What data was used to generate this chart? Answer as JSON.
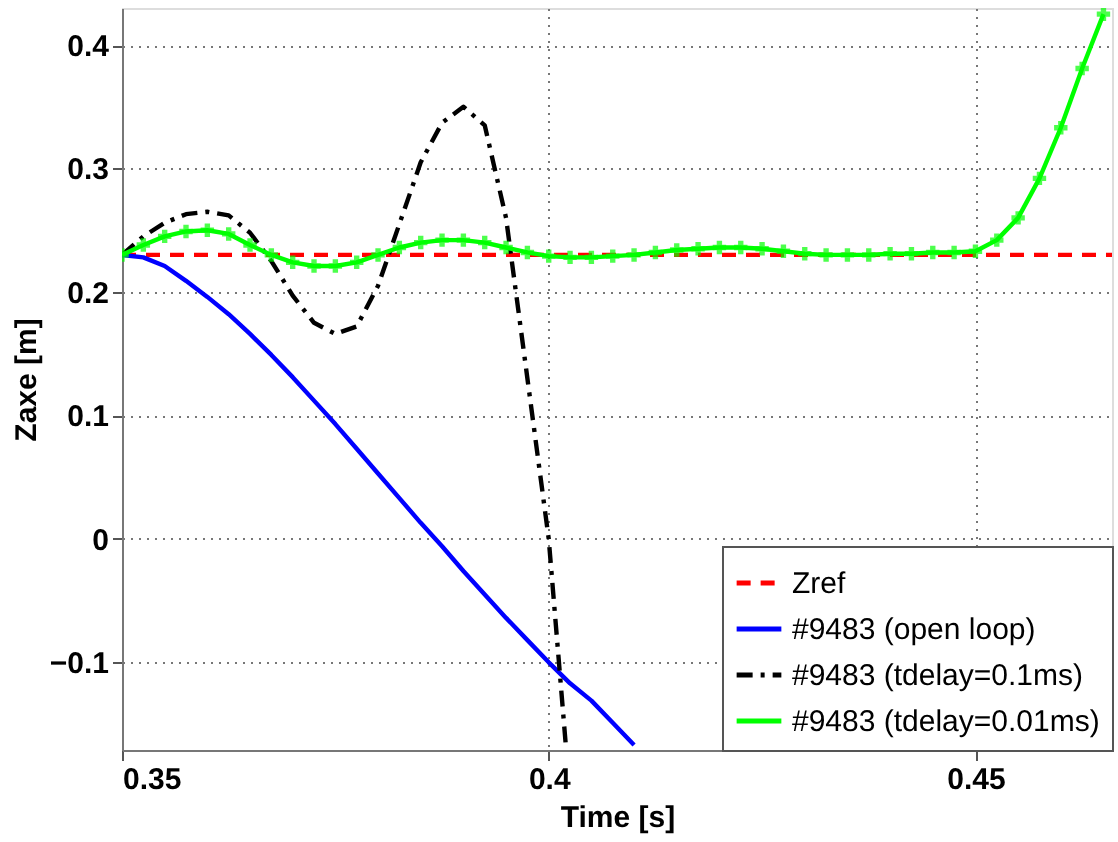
{
  "chart_data": {
    "type": "line",
    "xlabel": "Time [s]",
    "ylabel": "Zaxe [m]",
    "xlim": [
      0.35,
      0.466
    ],
    "xticks": [
      0.35,
      0.4,
      0.45
    ],
    "ylim": [
      -0.171,
      0.43
    ],
    "yticks": [
      -0.1,
      0,
      0.1,
      0.2,
      0.3,
      0.4
    ],
    "grid": true,
    "legend": "bottom right",
    "series": [
      {
        "name": "Zref",
        "color": "#ff0000",
        "line_style": "dashed",
        "marker": "none",
        "x": [
          0.35,
          0.466
        ],
        "values": [
          0.23,
          0.23
        ]
      },
      {
        "name": "#9483 (open loop)",
        "color": "#0000ff",
        "line_style": "solid",
        "marker": "none",
        "x": [
          0.35,
          0.3525,
          0.355,
          0.3575,
          0.36,
          0.3625,
          0.365,
          0.3675,
          0.37,
          0.3725,
          0.375,
          0.3775,
          0.38,
          0.3825,
          0.385,
          0.3875,
          0.39,
          0.3925,
          0.395,
          0.3975,
          0.4,
          0.4025,
          0.405,
          0.4075,
          0.41
        ],
        "values": [
          0.23,
          0.228,
          0.221,
          0.209,
          0.196,
          0.182,
          0.166,
          0.149,
          0.131,
          0.112,
          0.093,
          0.073,
          0.053,
          0.033,
          0.013,
          -0.006,
          -0.026,
          -0.045,
          -0.064,
          -0.082,
          -0.1,
          -0.117,
          -0.131,
          -0.149,
          -0.167
        ]
      },
      {
        "name": "#9483 (tdelay=0.1ms)",
        "color": "#000000",
        "line_style": "dashdot",
        "marker": "none",
        "x": [
          0.35,
          0.3525,
          0.355,
          0.3575,
          0.36,
          0.3625,
          0.365,
          0.3675,
          0.37,
          0.3725,
          0.375,
          0.3775,
          0.38,
          0.3825,
          0.385,
          0.3875,
          0.39,
          0.3925,
          0.395,
          0.3975,
          0.4,
          0.402
        ],
        "values": [
          0.23,
          0.245,
          0.256,
          0.263,
          0.265,
          0.262,
          0.248,
          0.225,
          0.197,
          0.175,
          0.166,
          0.172,
          0.205,
          0.255,
          0.305,
          0.337,
          0.35,
          0.335,
          0.26,
          0.13,
          0.0,
          -0.167
        ]
      },
      {
        "name": "#9483 (tdelay=0.01ms)",
        "color": "#00ff00",
        "line_style": "solid",
        "marker": "cross",
        "x": [
          0.35,
          0.3525,
          0.355,
          0.3575,
          0.36,
          0.3625,
          0.365,
          0.3675,
          0.37,
          0.3725,
          0.375,
          0.3775,
          0.38,
          0.3825,
          0.385,
          0.3875,
          0.39,
          0.3925,
          0.395,
          0.3975,
          0.4,
          0.4025,
          0.405,
          0.4075,
          0.41,
          0.4125,
          0.415,
          0.4175,
          0.42,
          0.4225,
          0.425,
          0.4275,
          0.43,
          0.4325,
          0.435,
          0.4375,
          0.44,
          0.4425,
          0.445,
          0.4475,
          0.45,
          0.4525,
          0.455,
          0.4575,
          0.46,
          0.4625,
          0.465
        ],
        "values": [
          0.23,
          0.238,
          0.245,
          0.249,
          0.25,
          0.247,
          0.238,
          0.23,
          0.224,
          0.221,
          0.221,
          0.224,
          0.23,
          0.236,
          0.24,
          0.242,
          0.242,
          0.24,
          0.236,
          0.232,
          0.229,
          0.228,
          0.228,
          0.229,
          0.23,
          0.232,
          0.234,
          0.235,
          0.236,
          0.236,
          0.235,
          0.233,
          0.231,
          0.23,
          0.23,
          0.23,
          0.231,
          0.231,
          0.232,
          0.232,
          0.233,
          0.242,
          0.26,
          0.292,
          0.333,
          0.381,
          0.425
        ]
      }
    ]
  }
}
